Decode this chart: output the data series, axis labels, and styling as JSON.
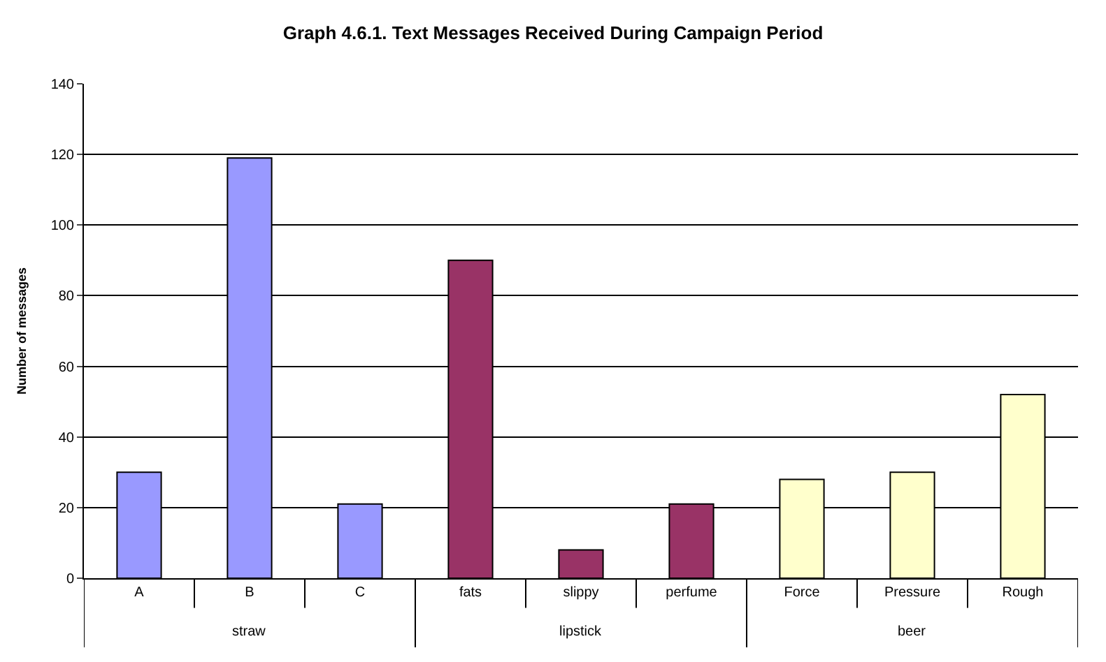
{
  "chart_data": {
    "type": "bar",
    "title": "Graph 4.6.1. Text Messages Received During Campaign Period",
    "ylabel": "Number of messages",
    "categories": [
      "A",
      "B",
      "C",
      "fats",
      "slippy",
      "perfume",
      "Force",
      "Pressure",
      "Rough"
    ],
    "values": [
      30,
      119,
      21,
      90,
      8,
      21,
      28,
      30,
      52
    ],
    "colors": [
      "#9999ff",
      "#9999ff",
      "#9999ff",
      "#993366",
      "#993366",
      "#993366",
      "#ffffcc",
      "#ffffcc",
      "#ffffcc"
    ],
    "ylim": [
      0,
      140
    ],
    "yticks": [
      0,
      20,
      40,
      60,
      80,
      100,
      120,
      140
    ],
    "grid": "y",
    "annotations": [
      "straw",
      "lipstick",
      "beer"
    ]
  }
}
